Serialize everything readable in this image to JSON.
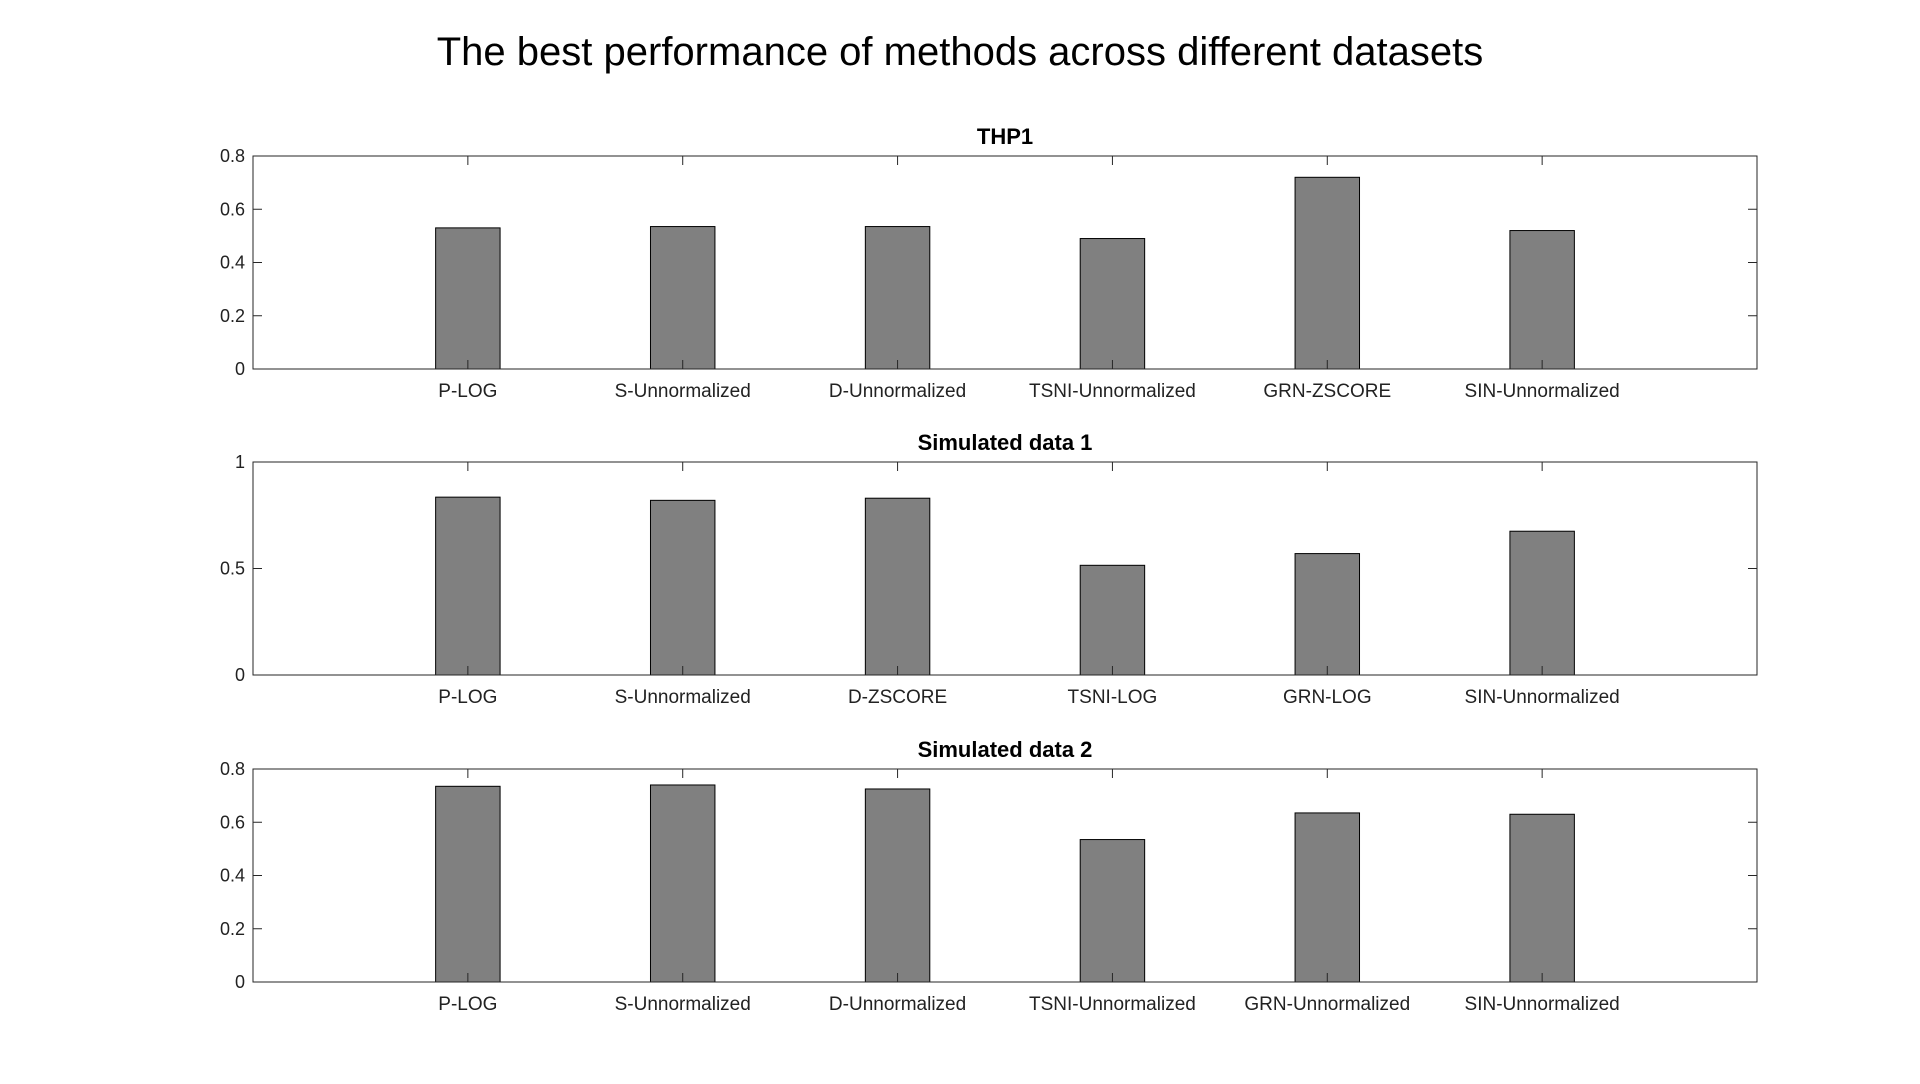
{
  "figure": {
    "title": "The best performance of methods across different datasets",
    "bar_color": "#808080",
    "axis_color": "#262626"
  },
  "chart_data": [
    {
      "type": "bar",
      "title": "THP1",
      "categories": [
        "P-LOG",
        "S-Unnormalized",
        "D-Unnormalized",
        "TSNI-Unnormalized",
        "GRN-ZSCORE",
        "SIN-Unnormalized"
      ],
      "values": [
        0.53,
        0.535,
        0.535,
        0.49,
        0.72,
        0.52
      ],
      "ylim": [
        0,
        0.8
      ],
      "yticks": [
        "0",
        "0.2",
        "0.4",
        "0.6",
        "0.8"
      ],
      "ytick_values": [
        0,
        0.2,
        0.4,
        0.6,
        0.8
      ],
      "xlim": [
        0,
        7
      ],
      "grid": false,
      "xlabel": "",
      "ylabel": ""
    },
    {
      "type": "bar",
      "title": "Simulated data 1",
      "categories": [
        "P-LOG",
        "S-Unnormalized",
        "D-ZSCORE",
        "TSNI-LOG",
        "GRN-LOG",
        "SIN-Unnormalized"
      ],
      "values": [
        0.835,
        0.82,
        0.83,
        0.515,
        0.57,
        0.675
      ],
      "ylim": [
        0,
        1
      ],
      "yticks": [
        "0",
        "0.5",
        "1"
      ],
      "ytick_values": [
        0,
        0.5,
        1
      ],
      "xlim": [
        0,
        7
      ],
      "grid": false,
      "xlabel": "",
      "ylabel": ""
    },
    {
      "type": "bar",
      "title": "Simulated data 2",
      "categories": [
        "P-LOG",
        "S-Unnormalized",
        "D-Unnormalized",
        "TSNI-Unnormalized",
        "GRN-Unnormalized",
        "SIN-Unnormalized"
      ],
      "values": [
        0.735,
        0.74,
        0.725,
        0.535,
        0.635,
        0.63
      ],
      "ylim": [
        0,
        0.8
      ],
      "yticks": [
        "0",
        "0.2",
        "0.4",
        "0.6",
        "0.8"
      ],
      "ytick_values": [
        0,
        0.2,
        0.4,
        0.6,
        0.8
      ],
      "xlim": [
        0,
        7
      ],
      "grid": false,
      "xlabel": "",
      "ylabel": ""
    }
  ]
}
